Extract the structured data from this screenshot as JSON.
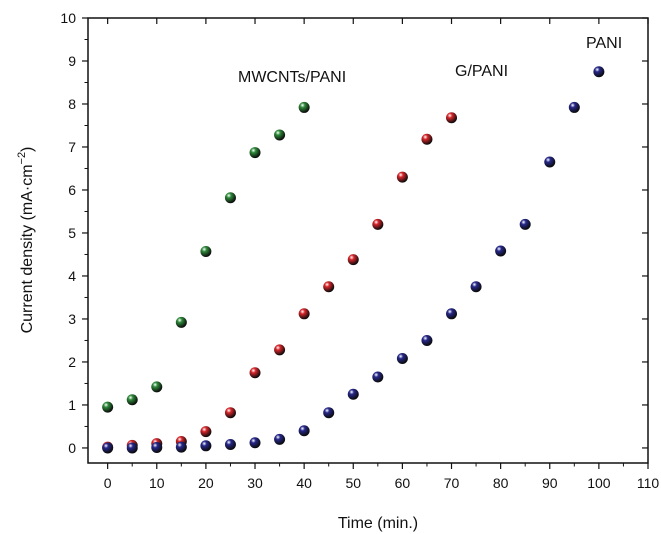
{
  "chart_data": {
    "type": "scatter",
    "title": "",
    "xlabel": "Time (min.)",
    "ylabel_main": "Current density (mA·cm",
    "ylabel_sup": "−2",
    "ylabel_close": ")",
    "xlim": [
      -4,
      110
    ],
    "ylim": [
      -0.35,
      10
    ],
    "xticks": [
      "0",
      "10",
      "20",
      "30",
      "40",
      "50",
      "60",
      "70",
      "80",
      "90",
      "100",
      "110"
    ],
    "yticks": [
      "0",
      "1",
      "2",
      "3",
      "4",
      "5",
      "6",
      "7",
      "8",
      "9",
      "10"
    ],
    "grid": false,
    "legend": "none",
    "series": [
      {
        "name": "MWCNTs/PANI",
        "color": "#2e8b3a",
        "x": [
          0,
          5,
          10,
          15,
          20,
          25,
          30,
          35,
          40
        ],
        "y": [
          0.95,
          1.12,
          1.42,
          2.92,
          4.57,
          5.82,
          6.87,
          7.28,
          7.92
        ]
      },
      {
        "name": "G/PANI",
        "color": "#d8262b",
        "x": [
          0,
          5,
          10,
          15,
          20,
          25,
          30,
          35,
          40,
          45,
          50,
          55,
          60,
          65,
          70
        ],
        "y": [
          0.02,
          0.06,
          0.1,
          0.15,
          0.38,
          0.82,
          1.75,
          2.28,
          3.12,
          3.75,
          4.38,
          5.2,
          6.3,
          7.18,
          7.68
        ]
      },
      {
        "name": "PANI",
        "color": "#26288c",
        "x": [
          0,
          5,
          10,
          15,
          20,
          25,
          30,
          35,
          40,
          45,
          50,
          55,
          60,
          65,
          70,
          75,
          80,
          85,
          90,
          95,
          100
        ],
        "y": [
          0.0,
          0.0,
          0.01,
          0.02,
          0.05,
          0.08,
          0.12,
          0.2,
          0.4,
          0.82,
          1.25,
          1.65,
          2.08,
          2.5,
          3.12,
          3.75,
          4.58,
          5.2,
          6.65,
          7.92,
          8.75
        ]
      }
    ]
  }
}
